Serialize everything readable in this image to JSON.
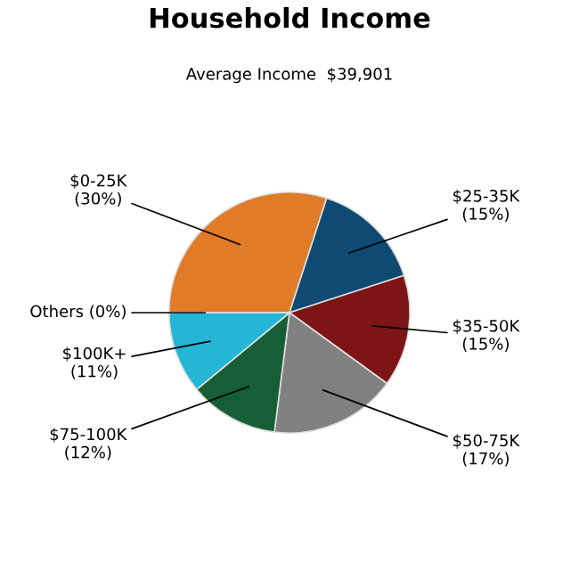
{
  "chart_data": {
    "type": "pie",
    "title": "Household Income",
    "subtitle": "Average Income  $39,901",
    "categories": [
      "$0-25K",
      "$25-35K",
      "$35-50K",
      "$50-75K",
      "$75-100K",
      "$100K+",
      "Others"
    ],
    "values": [
      30,
      15,
      15,
      17,
      12,
      11,
      0
    ],
    "colors": [
      "#e07b28",
      "#0e4a72",
      "#7d1416",
      "#808080",
      "#165f36",
      "#24b6d6",
      "#9a9a9a"
    ],
    "value_labels": [
      "(30%)",
      "(15%)",
      "(15%)",
      "(17%)",
      "(12%)",
      "(11%)",
      "(0%)"
    ]
  }
}
